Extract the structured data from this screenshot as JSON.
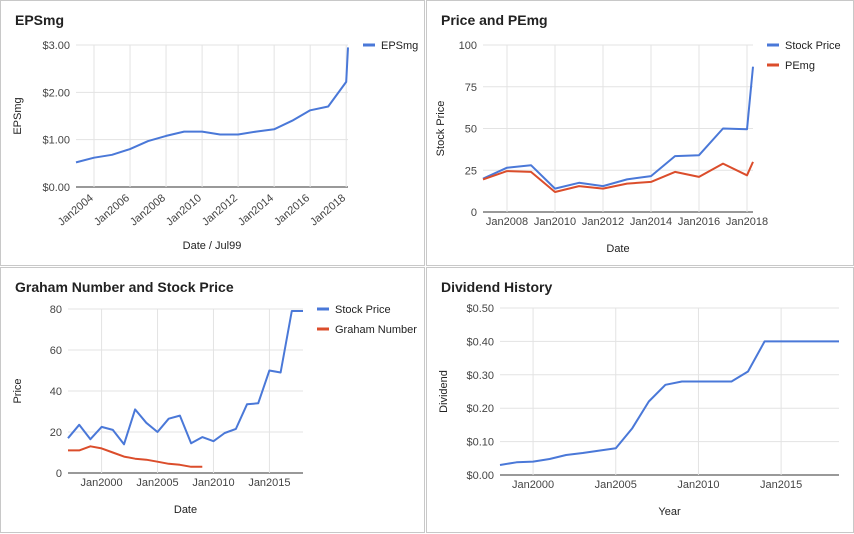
{
  "panels": [
    {
      "title": "EPSmg",
      "chart_data": {
        "type": "line",
        "title": "EPSmg",
        "xlabel": "Date / Jul99",
        "ylabel": "EPSmg",
        "x_ticks": [
          "Jan2004",
          "Jan2006",
          "Jan2008",
          "Jan2010",
          "Jan2012",
          "Jan2014",
          "Jan2016",
          "Jan2018"
        ],
        "y_ticks": [
          "$0.00",
          "$1.00",
          "$2.00",
          "$3.00"
        ],
        "xlim": [
          2003.0,
          2018.1
        ],
        "ylim": [
          0,
          3
        ],
        "grid": true,
        "legend": "right",
        "series": [
          {
            "name": "EPSmg",
            "color": "#4a78d8",
            "x": [
              2003.0,
              2004.0,
              2005.0,
              2006.0,
              2007.0,
              2008.0,
              2009.0,
              2010.0,
              2011.0,
              2012.0,
              2013.0,
              2014.0,
              2015.0,
              2016.0,
              2017.0,
              2018.0,
              2018.1
            ],
            "y": [
              0.52,
              0.62,
              0.68,
              0.8,
              0.97,
              1.08,
              1.17,
              1.17,
              1.11,
              1.11,
              1.17,
              1.22,
              1.4,
              1.62,
              1.7,
              2.22,
              2.95
            ]
          }
        ]
      }
    },
    {
      "title": "Price and PEmg",
      "chart_data": {
        "type": "line",
        "title": "Price and PEmg",
        "xlabel": "Date",
        "ylabel": "Stock Price",
        "x_ticks": [
          "Jan2008",
          "Jan2010",
          "Jan2012",
          "Jan2014",
          "Jan2016",
          "Jan2018"
        ],
        "y_ticks": [
          "0",
          "25",
          "50",
          "75",
          "100"
        ],
        "xlim": [
          2007.0,
          2018.25
        ],
        "ylim": [
          0,
          100
        ],
        "grid": true,
        "legend": "right",
        "series": [
          {
            "name": "Stock Price",
            "color": "#4a78d8",
            "x": [
              2007.0,
              2008.0,
              2009.0,
              2010.0,
              2011.0,
              2012.0,
              2013.0,
              2014.0,
              2015.0,
              2016.0,
              2017.0,
              2018.0,
              2018.25
            ],
            "y": [
              20,
              26.5,
              28,
              14,
              17.5,
              15.5,
              19.5,
              21.5,
              33.5,
              34,
              50,
              49.5,
              87
            ]
          },
          {
            "name": "PEmg",
            "color": "#db4d2b",
            "x": [
              2007.0,
              2008.0,
              2009.0,
              2010.0,
              2011.0,
              2012.0,
              2013.0,
              2014.0,
              2015.0,
              2016.0,
              2017.0,
              2018.0,
              2018.25
            ],
            "y": [
              19.5,
              24.5,
              24,
              12,
              15.5,
              14,
              17,
              18,
              24,
              21,
              29,
              22,
              30
            ]
          }
        ]
      }
    },
    {
      "title": "Graham Number and Stock Price",
      "chart_data": {
        "type": "line",
        "title": "Graham Number and Stock Price",
        "xlabel": "Date",
        "ylabel": "Price",
        "x_ticks": [
          "Jan2000",
          "Jan2005",
          "Jan2010",
          "Jan2015"
        ],
        "y_ticks": [
          "0",
          "20",
          "40",
          "60",
          "80"
        ],
        "xlim": [
          1997.0,
          2018.0
        ],
        "ylim": [
          0,
          80
        ],
        "grid": true,
        "legend": "right",
        "series": [
          {
            "name": "Stock Price",
            "color": "#4a78d8",
            "x": [
              1997.0,
              1998.0,
              1999.0,
              2000.0,
              2001.0,
              2002.0,
              2003.0,
              2004.0,
              2005.0,
              2006.0,
              2007.0,
              2008.0,
              2009.0,
              2010.0,
              2011.0,
              2012.0,
              2013.0,
              2014.0,
              2015.0,
              2016.0,
              2017.0,
              2018.0
            ],
            "y": [
              17,
              23.5,
              16.5,
              22.5,
              21,
              14,
              31,
              24.5,
              20,
              26.5,
              28,
              14.5,
              17.5,
              15.5,
              19.5,
              21.5,
              33.5,
              34,
              50,
              49,
              79,
              79
            ]
          },
          {
            "name": "Graham Number",
            "color": "#db4d2b",
            "x": [
              1997.0,
              1998.0,
              1999.0,
              2000.0,
              2001.0,
              2002.0,
              2003.0,
              2004.0,
              2005.0,
              2006.0,
              2007.0,
              2008.0,
              2009.0
            ],
            "y": [
              11,
              11,
              13,
              12,
              10,
              8,
              7,
              6.5,
              5.5,
              4.5,
              4,
              3,
              3
            ]
          }
        ]
      }
    },
    {
      "title": "Dividend History",
      "chart_data": {
        "type": "line",
        "title": "Dividend History",
        "xlabel": "Year",
        "ylabel": "Dividend",
        "x_ticks": [
          "Jan2000",
          "Jan2005",
          "Jan2010",
          "Jan2015"
        ],
        "y_ticks": [
          "$0.00",
          "$0.10",
          "$0.20",
          "$0.30",
          "$0.40",
          "$0.50"
        ],
        "xlim": [
          1998.0,
          2018.5
        ],
        "ylim": [
          0,
          0.5
        ],
        "grid": true,
        "legend": "none",
        "series": [
          {
            "name": "",
            "color": "#4a78d8",
            "x": [
              1998.0,
              1999.0,
              2000.0,
              2001.0,
              2002.0,
              2003.0,
              2004.0,
              2005.0,
              2006.0,
              2007.0,
              2008.0,
              2009.0,
              2010.0,
              2011.0,
              2012.0,
              2013.0,
              2014.0,
              2015.0,
              2016.0,
              2017.0,
              2018.5
            ],
            "y": [
              0.03,
              0.038,
              0.04,
              0.048,
              0.06,
              0.066,
              0.073,
              0.08,
              0.14,
              0.22,
              0.27,
              0.28,
              0.28,
              0.28,
              0.28,
              0.31,
              0.4,
              0.4,
              0.4,
              0.4,
              0.4
            ]
          }
        ]
      }
    }
  ]
}
